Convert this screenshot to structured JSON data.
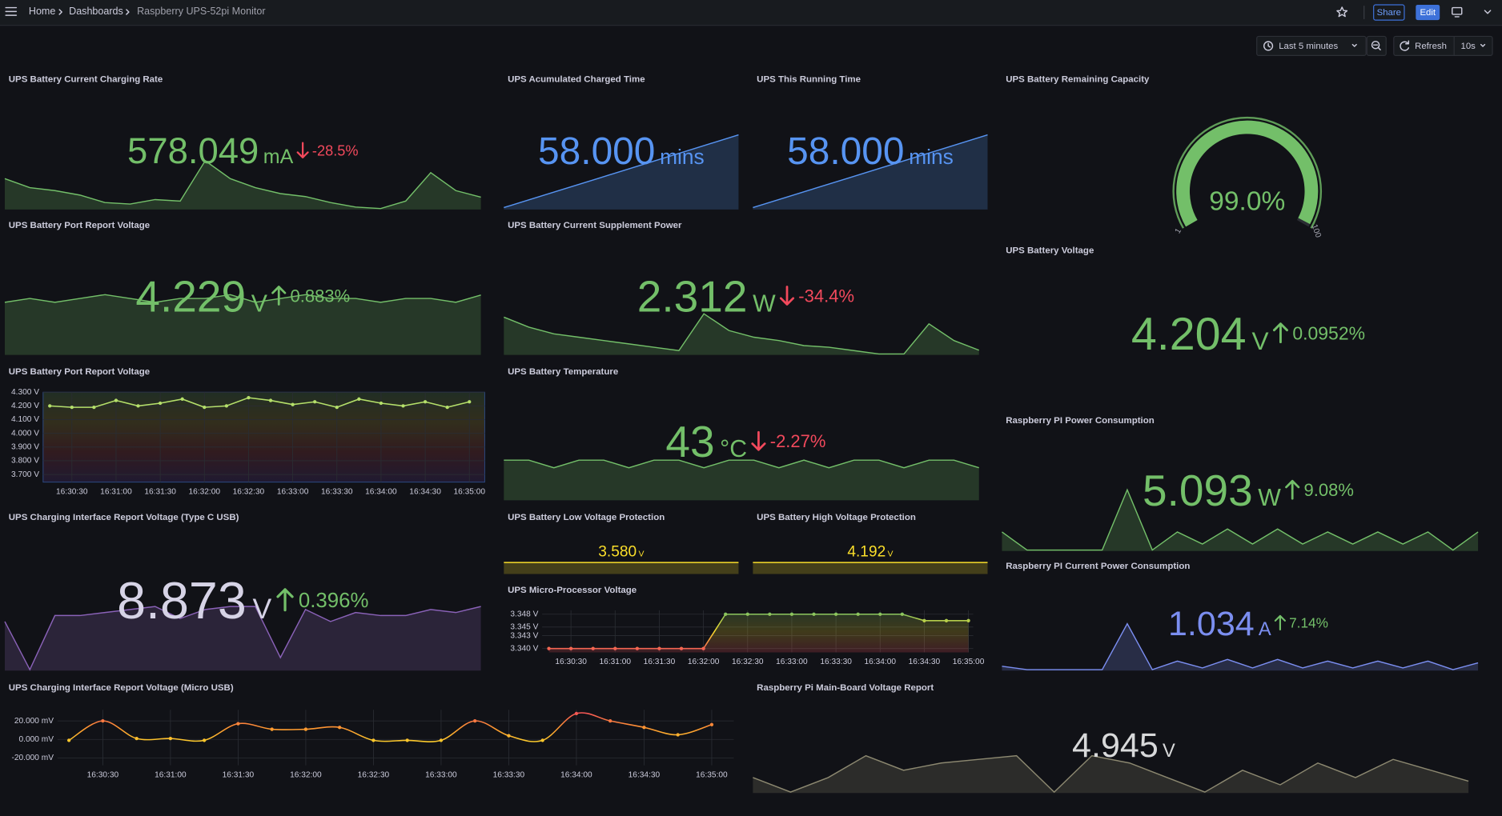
{
  "header": {
    "breadcrumbs": [
      "Home",
      "Dashboards",
      "Raspberry UPS-52pi Monitor"
    ],
    "share": "Share",
    "edit": "Edit"
  },
  "toolbar": {
    "time_range": "Last 5 minutes",
    "refresh": "Refresh",
    "interval": "10s"
  },
  "panels": [
    {
      "type": "stat",
      "title": "UPS Battery Current Charging Rate",
      "value": "578.049",
      "unit": "mA",
      "delta": "-28.5%",
      "color": "#73bf69",
      "spark_color": "#73bf69",
      "spark": [
        640,
        610,
        600,
        585,
        560,
        555,
        570,
        565,
        700,
        640,
        610,
        590,
        580,
        560,
        545,
        540,
        565,
        660,
        600,
        578.049
      ]
    },
    {
      "type": "stat",
      "title": "UPS Acumulated Charged Time",
      "value": "58.000",
      "unit": "mins",
      "color": "#5794f2",
      "spark_color": "#5794f2",
      "spark": [
        53,
        54,
        55,
        56,
        57,
        58
      ]
    },
    {
      "type": "stat",
      "title": "UPS This Running Time",
      "value": "58.000",
      "unit": "mins",
      "color": "#5794f2",
      "spark_color": "#5794f2",
      "spark": [
        53,
        54,
        55,
        56,
        57,
        58
      ]
    },
    {
      "type": "gauge",
      "title": "UPS Battery Remaining Capacity",
      "value": 99,
      "value_label": "99.0%",
      "min": 1,
      "max": 100,
      "color": "#73bf69"
    },
    {
      "type": "stat",
      "title": "UPS Battery Port Report Voltage",
      "value": "4.229",
      "unit": "V",
      "delta": "0.883%",
      "color": "#73bf69",
      "spark_color": "#73bf69",
      "spark": [
        4.21,
        4.22,
        4.21,
        4.22,
        4.23,
        4.22,
        4.21,
        4.22,
        4.22,
        4.23,
        4.21,
        4.22,
        4.23,
        4.22,
        4.22,
        4.21,
        4.22,
        4.22,
        4.21,
        4.229
      ]
    },
    {
      "type": "stat",
      "title": "UPS Battery Current Supplement Power",
      "value": "2.312",
      "unit": "W",
      "delta": "-34.4%",
      "color": "#73bf69",
      "spark_color": "#73bf69",
      "spark": [
        3.3,
        3.0,
        2.8,
        2.7,
        2.6,
        2.5,
        2.4,
        2.3,
        3.4,
        2.9,
        2.7,
        2.6,
        2.45,
        2.4,
        2.3,
        2.2,
        2.2,
        3.1,
        2.6,
        2.312
      ]
    },
    {
      "type": "stat",
      "title": "UPS Battery Voltage",
      "value": "4.204",
      "unit": "V",
      "delta": "0.0952%",
      "color": "#73bf69"
    },
    {
      "type": "timeseries",
      "title": "UPS Battery Port Report Voltage",
      "color": "#b5e06a",
      "colors": [
        "#6e3fb5",
        "#d94a4a",
        "#e0c33a",
        "#73bf69"
      ],
      "background": true,
      "points": true,
      "ylim": [
        3.644,
        4.3
      ],
      "yticks": [
        {
          "value": 3.7,
          "label": "3.700 V"
        },
        {
          "value": 3.8,
          "label": "3.800 V"
        },
        {
          "value": 3.9,
          "label": "3.900 V"
        },
        {
          "value": 4.0,
          "label": "4.000 V"
        },
        {
          "value": 4.1,
          "label": "4.100 V"
        },
        {
          "value": 4.2,
          "label": "4.200 V"
        },
        {
          "value": 4.3,
          "label": "4.300 V"
        }
      ],
      "categories": [
        null,
        "16:30:30",
        null,
        "16:31:00",
        null,
        "16:31:30",
        null,
        "16:32:00",
        null,
        "16:32:30",
        null,
        "16:33:00",
        null,
        "16:33:30",
        null,
        "16:34:00",
        null,
        "16:34:30",
        null,
        "16:35:00"
      ],
      "values": [
        4.2,
        4.19,
        4.19,
        4.24,
        4.2,
        4.22,
        4.25,
        4.19,
        4.2,
        4.26,
        4.24,
        4.21,
        4.23,
        4.19,
        4.25,
        4.22,
        4.2,
        4.23,
        4.19,
        4.23
      ]
    },
    {
      "type": "stat",
      "title": "UPS Battery Temperature",
      "value": "43",
      "unit": "°C",
      "delta": "-2.27%",
      "color": "#73bf69",
      "spark_color": "#73bf69",
      "spark": [
        44,
        44,
        43,
        44,
        44,
        43,
        44,
        44,
        43,
        44,
        44,
        43,
        44,
        43,
        44,
        44,
        43,
        44,
        44,
        43
      ]
    },
    {
      "type": "stat",
      "title": "Raspberry PI Power Consumption",
      "value": "5.093",
      "unit": "W",
      "delta": "9.08%",
      "color": "#73bf69",
      "spark_color": "#73bf69",
      "spark": [
        4.9,
        4.6,
        4.6,
        4.6,
        4.6,
        5.6,
        4.6,
        4.9,
        4.7,
        4.95,
        4.7,
        4.95,
        4.7,
        4.9,
        4.7,
        4.9,
        4.7,
        4.9,
        4.6,
        4.9
      ]
    },
    {
      "type": "stat",
      "title": "UPS Charging Interface Report Voltage (Type C USB)",
      "value": "8.873",
      "unit": "V",
      "delta": "0.396%",
      "color": "#d6d3e6",
      "spark_color": "#8a62b8",
      "spark": [
        8.7,
        7.9,
        8.8,
        8.8,
        8.85,
        8.9,
        8.95,
        8.75,
        8.9,
        8.95,
        8.95,
        8.1,
        8.9,
        8.7,
        8.85,
        8.8,
        8.8,
        8.9,
        8.85,
        8.95
      ]
    },
    {
      "type": "stat",
      "title": "UPS Battery Low Voltage Protection",
      "value": "3.580",
      "unit": "V",
      "color": "#fade2a",
      "spark_color": "#fade2a",
      "spark": [
        3.58,
        3.58,
        3.58,
        3.58
      ]
    },
    {
      "type": "stat",
      "title": "UPS Battery High Voltage Protection",
      "value": "4.192",
      "unit": "V",
      "color": "#fade2a",
      "spark_color": "#fade2a",
      "spark": [
        4.192,
        4.192,
        4.192,
        4.192
      ]
    },
    {
      "type": "timeseries",
      "title": "UPS Micro-Processor Voltage",
      "colors": [
        "#f2495c",
        "#fade2a",
        "#73bf69"
      ],
      "area": true,
      "points": true,
      "ylim": [
        3.3391,
        3.3489
      ],
      "yticks": [
        {
          "value": 3.34,
          "label": "3.340 V"
        },
        {
          "value": 3.343,
          "label": "3.343 V"
        },
        {
          "value": 3.345,
          "label": "3.345 V"
        },
        {
          "value": 3.348,
          "label": "3.348 V"
        }
      ],
      "categories": [
        null,
        "16:30:30",
        null,
        "16:31:00",
        null,
        "16:31:30",
        null,
        "16:32:00",
        null,
        "16:32:30",
        null,
        "16:33:00",
        null,
        "16:33:30",
        null,
        "16:34:00",
        null,
        "16:34:30",
        null,
        "16:35:00"
      ],
      "values": [
        3.34,
        3.34,
        3.34,
        3.34,
        3.34,
        3.34,
        3.34,
        3.34,
        3.348,
        3.348,
        3.348,
        3.348,
        3.348,
        3.348,
        3.348,
        3.348,
        3.348,
        3.3465,
        3.3465,
        3.3465
      ]
    },
    {
      "type": "stat",
      "title": "Raspberry PI Current Power Consumption",
      "value": "1.034",
      "unit": "A",
      "delta": "7.14%",
      "color": "#7b8ef0",
      "spark_color": "#7b8ef0",
      "spark": [
        0.95,
        0.93,
        0.93,
        0.93,
        0.93,
        1.2,
        0.93,
        0.98,
        0.94,
        0.99,
        0.94,
        0.99,
        0.94,
        0.98,
        0.94,
        0.98,
        0.94,
        0.98,
        0.93,
        0.97
      ]
    },
    {
      "type": "timeseries",
      "title": "UPS Charging Interface Report Voltage (Micro USB)",
      "colors": [
        "#3274d9",
        "#fade2a",
        "#ff9830",
        "#f2495c"
      ],
      "points": true,
      "smooth": true,
      "ylim": [
        -28,
        32
      ],
      "yticks": [
        {
          "value": -20,
          "label": "-20.000 mV"
        },
        {
          "value": 0,
          "label": "0.000 mV"
        },
        {
          "value": 20,
          "label": "20.000 mV"
        }
      ],
      "categories": [
        null,
        "16:30:30",
        null,
        "16:31:00",
        null,
        "16:31:30",
        null,
        "16:32:00",
        null,
        "16:32:30",
        null,
        "16:33:00",
        null,
        "16:33:30",
        null,
        "16:34:00",
        null,
        "16:34:30",
        null,
        "16:35:00"
      ],
      "values": [
        -1,
        20,
        1,
        1,
        -1,
        17,
        11,
        11,
        13,
        -1,
        -1,
        -1,
        20,
        4,
        -1,
        28,
        20,
        13,
        5,
        16
      ]
    },
    {
      "type": "stat",
      "title": "Raspberry Pi Main-Board Voltage Report",
      "value": "4.945",
      "unit": "V",
      "color": "#d8d9da",
      "spark_color": "#8c8870",
      "spark": [
        4.93,
        4.91,
        4.93,
        4.96,
        4.94,
        4.95,
        4.955,
        4.96,
        4.91,
        4.96,
        4.95,
        4.93,
        4.91,
        4.94,
        4.92,
        4.95,
        4.93,
        4.955,
        4.94,
        4.925
      ]
    }
  ]
}
